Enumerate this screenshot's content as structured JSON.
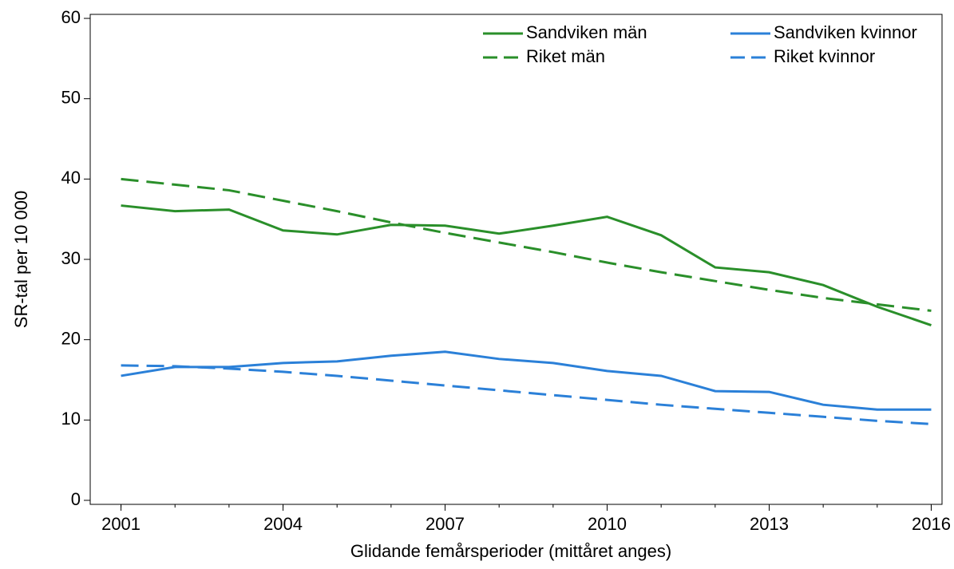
{
  "chart_data": {
    "type": "line",
    "x_label": "Glidande femårsperioder (mittåret anges)",
    "y_label": "SR-tal per 10 000",
    "x": [
      2001,
      2002,
      2003,
      2004,
      2005,
      2006,
      2007,
      2008,
      2009,
      2010,
      2011,
      2012,
      2013,
      2014,
      2015,
      2016
    ],
    "series": [
      {
        "name": "Sandviken män",
        "color": "#2a8f2a",
        "dashed": false,
        "values": [
          36.7,
          36.0,
          36.2,
          33.6,
          33.1,
          34.3,
          34.2,
          33.2,
          34.2,
          35.3,
          33.0,
          29.0,
          28.4,
          26.8,
          24.1,
          21.8
        ]
      },
      {
        "name": "Sandviken kvinnor",
        "color": "#2b80d8",
        "dashed": false,
        "values": [
          15.5,
          16.6,
          16.6,
          17.1,
          17.3,
          18.0,
          18.5,
          17.6,
          17.1,
          16.1,
          15.5,
          13.6,
          13.5,
          11.9,
          11.3,
          11.3
        ]
      },
      {
        "name": "Riket män",
        "color": "#2a8f2a",
        "dashed": true,
        "values": [
          40.0,
          39.3,
          38.6,
          37.3,
          36.0,
          34.6,
          33.3,
          32.1,
          30.9,
          29.6,
          28.4,
          27.3,
          26.2,
          25.2,
          24.4,
          23.6
        ]
      },
      {
        "name": "Riket kvinnor",
        "color": "#2b80d8",
        "dashed": true,
        "values": [
          16.8,
          16.7,
          16.4,
          16.0,
          15.5,
          14.9,
          14.3,
          13.7,
          13.1,
          12.5,
          11.9,
          11.4,
          10.9,
          10.4,
          9.9,
          9.5
        ]
      }
    ],
    "xlim": [
      2000.43,
      2016.2
    ],
    "xticks": [
      2001,
      2004,
      2007,
      2010,
      2013,
      2016
    ],
    "ylim": [
      -0.5,
      60.5
    ],
    "yticks": [
      0,
      10,
      20,
      30,
      40,
      50,
      60
    ],
    "legend": "top-right"
  }
}
